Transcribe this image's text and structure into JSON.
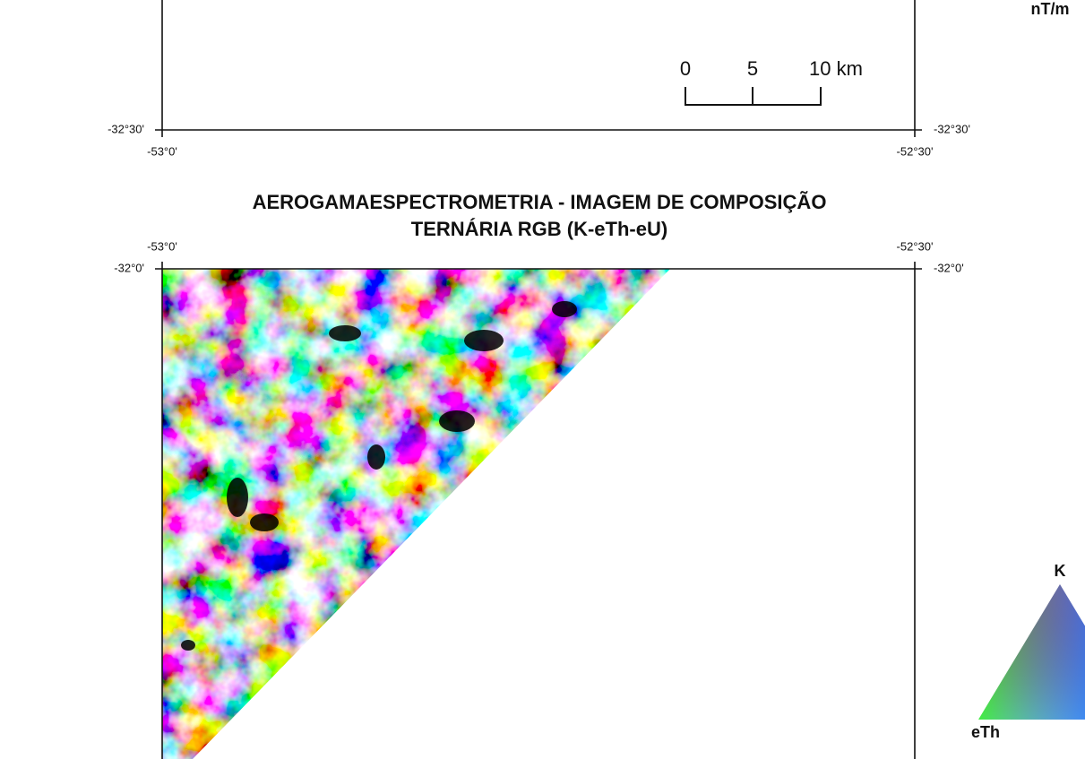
{
  "units_label": "nT/m",
  "top_map": {
    "scale_bar": [
      "0",
      "5",
      "10 km"
    ],
    "lat_labels": [
      "-32°30'",
      "-32°30'"
    ],
    "lon_labels": [
      "-53°0'",
      "-52°30'"
    ]
  },
  "title": [
    "AEROGAMAESPECTROMETRIA - IMAGEM DE COMPOSIÇÃO",
    "TERNÁRIA RGB (K-eTh-eU)"
  ],
  "bottom_map": {
    "lon_labels": [
      "-53°0'",
      "-52°30'"
    ],
    "lat_labels": [
      "-32°0'",
      "-32°0'"
    ]
  },
  "ternary_legend": {
    "labels": [
      "K",
      "eTh"
    ]
  }
}
